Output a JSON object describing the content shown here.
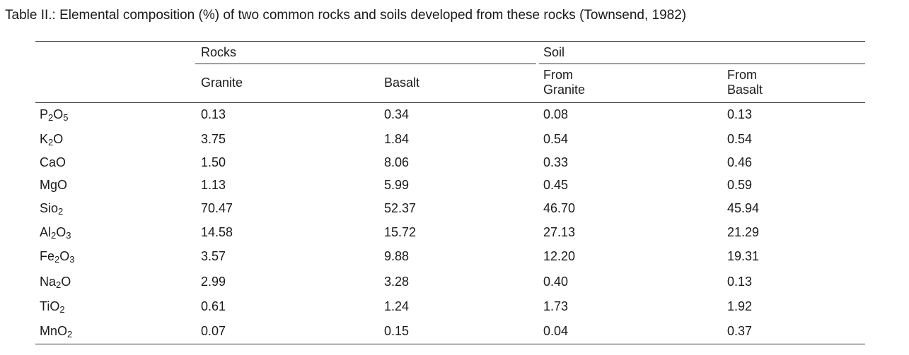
{
  "caption": "Table II.: Elemental composition (%) of two common rocks and soils developed from these rocks (Townsend, 1982)",
  "groups": {
    "rocks": "Rocks",
    "soil": "Soil"
  },
  "columns": {
    "granite": "Granite",
    "basalt": "Basalt",
    "soil_granite": [
      "From",
      "Granite"
    ],
    "soil_basalt": [
      "From",
      "Basalt"
    ]
  },
  "rows": [
    {
      "compound": [
        [
          "P",
          ""
        ],
        [
          "2",
          "sub"
        ],
        [
          "O",
          ""
        ],
        [
          "5",
          "sub"
        ]
      ],
      "values": [
        "0.13",
        "0.34",
        "0.08",
        "0.13"
      ]
    },
    {
      "compound": [
        [
          "K",
          ""
        ],
        [
          "2",
          "sub"
        ],
        [
          "O",
          ""
        ]
      ],
      "values": [
        "3.75",
        "1.84",
        "0.54",
        "0.54"
      ]
    },
    {
      "compound": [
        [
          "CaO",
          ""
        ]
      ],
      "values": [
        "1.50",
        "8.06",
        "0.33",
        "0.46"
      ]
    },
    {
      "compound": [
        [
          "MgO",
          ""
        ]
      ],
      "values": [
        "1.13",
        "5.99",
        "0.45",
        "0.59"
      ]
    },
    {
      "compound": [
        [
          "Sio",
          ""
        ],
        [
          "2",
          "sub"
        ]
      ],
      "values": [
        "70.47",
        "52.37",
        "46.70",
        "45.94"
      ]
    },
    {
      "compound": [
        [
          "Al",
          ""
        ],
        [
          "2",
          "sub"
        ],
        [
          "O",
          ""
        ],
        [
          "3",
          "sub"
        ]
      ],
      "values": [
        "14.58",
        "15.72",
        "27.13",
        "21.29"
      ]
    },
    {
      "compound": [
        [
          "Fe",
          ""
        ],
        [
          "2",
          "sub"
        ],
        [
          "O",
          ""
        ],
        [
          "3",
          "sub"
        ]
      ],
      "values": [
        "3.57",
        "9.88",
        "12.20",
        "19.31"
      ]
    },
    {
      "compound": [
        [
          "Na",
          ""
        ],
        [
          "2",
          "sub"
        ],
        [
          "O",
          ""
        ]
      ],
      "values": [
        "2.99",
        "3.28",
        "0.40",
        "0.13"
      ]
    },
    {
      "compound": [
        [
          "TiO",
          ""
        ],
        [
          "2",
          "sub"
        ]
      ],
      "values": [
        "0.61",
        "1.24",
        "1.73",
        "1.92"
      ]
    },
    {
      "compound": [
        [
          "MnO",
          ""
        ],
        [
          "2",
          "sub"
        ]
      ],
      "values": [
        "0.07",
        "0.15",
        "0.04",
        "0.37"
      ]
    }
  ]
}
